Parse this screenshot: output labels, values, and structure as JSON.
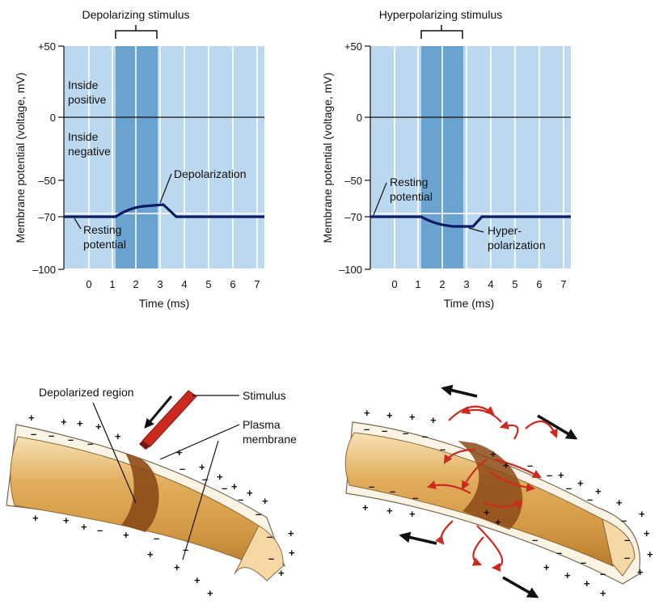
{
  "colors": {
    "plot_bg": "#bcd8ef",
    "stimulus_band": "#6aa3cf",
    "trace": "#0d1a66",
    "axon_light": "#f4d9a4",
    "axon_mid": "#d9a24e",
    "axon_dark": "#b8762a",
    "depolarized": "#8c4a17",
    "stimulus_rod": "#cc2a1e",
    "current_arrow": "#cc2a1e"
  },
  "graphs": [
    {
      "id": "depolarizing",
      "stimulus_label": "Depolarizing stimulus",
      "y_axis_label": "Membrane potential (voltage, mV)",
      "x_axis_label": "Time (ms)",
      "y_ticks": [
        "+50",
        "0",
        "–50",
        "–70",
        "–100"
      ],
      "y_tick_values": [
        50,
        0,
        -50,
        -70,
        -100
      ],
      "x_ticks": [
        "0",
        "1",
        "2",
        "3",
        "4",
        "5",
        "6",
        "7"
      ],
      "region_labels": {
        "top": [
          "Inside",
          "positive"
        ],
        "bottom": [
          "Inside",
          "negative"
        ]
      },
      "callouts": {
        "change": [
          "Depolarization"
        ],
        "resting": [
          "Resting",
          "potential"
        ]
      }
    },
    {
      "id": "hyperpolarizing",
      "stimulus_label": "Hyperpolarizing stimulus",
      "y_axis_label": "Membrane potential (voltage, mV)",
      "x_axis_label": "Time (ms)",
      "y_ticks": [
        "+50",
        "0",
        "–50",
        "–70",
        "–100"
      ],
      "y_tick_values": [
        50,
        0,
        -50,
        -70,
        -100
      ],
      "x_ticks": [
        "0",
        "1",
        "2",
        "3",
        "4",
        "5",
        "6",
        "7"
      ],
      "callouts": {
        "resting": [
          "Resting",
          "potential"
        ],
        "change": [
          "Hyper-",
          "polarization"
        ]
      }
    }
  ],
  "axon_labels": {
    "depolarized_region": "Depolarized region",
    "stimulus": "Stimulus",
    "plasma_membrane": [
      "Plasma",
      "membrane"
    ]
  },
  "signs": {
    "plus": "+",
    "minus": "–"
  }
}
